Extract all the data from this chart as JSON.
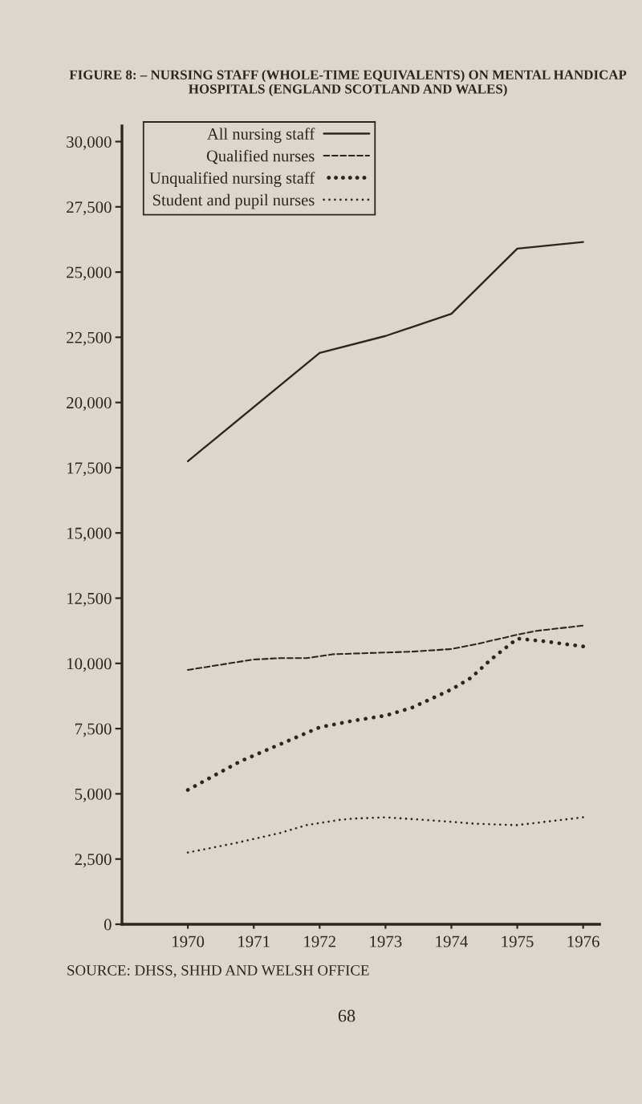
{
  "chart_data": {
    "type": "line",
    "title": "FIGURE 8: – NURSING STAFF (WHOLE-TIME EQUIVALENTS) ON MENTAL HANDICAP\nHOSPITALS (ENGLAND SCOTLAND AND WALES)",
    "annotations": [
      "SOURCE: DHSS, SHHD AND WELSH OFFICE",
      "68"
    ],
    "xlim": [
      1969,
      1976.25
    ],
    "xticks": [
      1970,
      1971,
      1972,
      1973,
      1974,
      1975,
      1976
    ],
    "ylim": [
      0,
      30600
    ],
    "yticks": [
      0,
      {
        "value": 2500,
        "label": "2,500"
      },
      {
        "value": 5000,
        "label": "5,000"
      },
      {
        "value": 7500,
        "label": "7,500"
      },
      {
        "value": 10000,
        "label": "10,000"
      },
      {
        "value": 12500,
        "label": "12,500"
      },
      {
        "value": 15000,
        "label": "15,000"
      },
      {
        "value": 17500,
        "label": "17,500"
      },
      {
        "value": 20000,
        "label": "20,000"
      },
      {
        "value": 22500,
        "label": "22,500"
      },
      {
        "value": 25000,
        "label": "25,000"
      },
      {
        "value": 27500,
        "label": "27,500"
      },
      {
        "value": 30000,
        "label": "30,000"
      }
    ],
    "legend": "top left",
    "series": [
      {
        "name": "All nursing staff",
        "color": "#2b2622",
        "line_style": "solid",
        "x": [
          1970,
          1972,
          1973,
          1974,
          1975,
          1976
        ],
        "values": [
          17750,
          21900,
          22550,
          23400,
          25900,
          26150
        ]
      },
      {
        "name": "Qualified nurses",
        "color": "#2b2622",
        "line_style": "dashed",
        "x": [
          1970,
          1971,
          1971.4,
          1971.8,
          1972.2,
          1973.4,
          1974,
          1974.4,
          1975,
          1975.3,
          1976
        ],
        "values": [
          9750,
          10150,
          10200,
          10200,
          10350,
          10450,
          10550,
          10750,
          11100,
          11250,
          11450
        ]
      },
      {
        "name": "Unqualified nursing staff",
        "color": "#2b2622",
        "line_style": "dotted",
        "x": [
          1970,
          1970.8,
          1971.4,
          1972,
          1972.5,
          1973,
          1973.4,
          1974,
          1974.3,
          1974.6,
          1975,
          1975.4,
          1976
        ],
        "values": [
          5150,
          6250,
          6900,
          7550,
          7800,
          8000,
          8300,
          9000,
          9450,
          10150,
          10950,
          10850,
          10650
        ]
      },
      {
        "name": "Student and pupil nurses",
        "color": "#2b2622",
        "line_style": "dotted",
        "x": [
          1970,
          1970.7,
          1971.4,
          1971.8,
          1972.3,
          1972.5,
          1973,
          1973.6,
          1974.4,
          1975,
          1975.5,
          1976
        ],
        "values": [
          2750,
          3100,
          3500,
          3800,
          4000,
          4050,
          4100,
          4000,
          3850,
          3800,
          3950,
          4100
        ]
      }
    ]
  }
}
